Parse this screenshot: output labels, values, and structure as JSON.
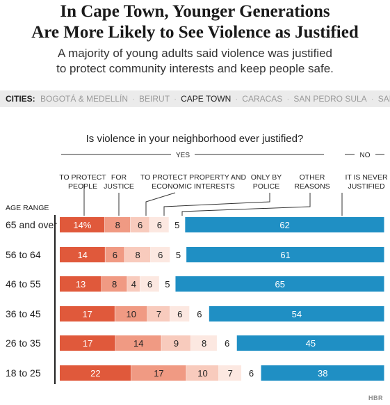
{
  "title_line1": "In Cape Town, Younger Generations",
  "title_line2": "Are More Likely to See Violence as Justified",
  "subtitle_line1": "A majority of young adults said violence was justified",
  "subtitle_line2": "to protect community interests and keep people safe.",
  "cities_label": "CITIES:",
  "cities": [
    {
      "name": "BOGOTÁ & MEDELLÍN",
      "active": false
    },
    {
      "name": "BEIRUT",
      "active": false
    },
    {
      "name": "CAPE TOWN",
      "active": true
    },
    {
      "name": "CARACAS",
      "active": false
    },
    {
      "name": "SAN PEDRO SULA",
      "active": false
    },
    {
      "name": "SAN SALVADOR",
      "active": false
    }
  ],
  "logo_text": "HBR",
  "chart_data": {
    "type": "bar",
    "orientation": "horizontal",
    "stacked": true,
    "title": "Is violence in your neighborhood ever justified?",
    "group_yes_label": "YES",
    "group_no_label": "NO",
    "category_axis_label": "AGE RANGE",
    "categories": [
      "65 and over",
      "56 to 64",
      "46 to 55",
      "36 to 45",
      "26 to 35",
      "18 to 25"
    ],
    "series": [
      {
        "name": "TO PROTECT PEOPLE",
        "label_lines": [
          "TO PROTECT",
          "PEOPLE"
        ],
        "color": "#e0593b",
        "text_color": "#ffffff",
        "values": [
          14,
          14,
          13,
          17,
          17,
          22
        ]
      },
      {
        "name": "FOR JUSTICE",
        "label_lines": [
          "FOR",
          "JUSTICE"
        ],
        "color": "#f09a83",
        "text_color": "#222222",
        "values": [
          8,
          6,
          8,
          10,
          14,
          17
        ]
      },
      {
        "name": "TO PROTECT PROPERTY AND ECONOMIC INTERESTS",
        "label_lines": [
          "TO PROTECT PROPERTY AND",
          "ECONOMIC INTERESTS"
        ],
        "color": "#f8cbbd",
        "text_color": "#222222",
        "values": [
          6,
          8,
          4,
          7,
          9,
          10
        ]
      },
      {
        "name": "ONLY BY POLICE",
        "label_lines": [
          "ONLY BY",
          "POLICE"
        ],
        "color": "#fce8e1",
        "text_color": "#222222",
        "values": [
          6,
          6,
          6,
          6,
          8,
          7
        ]
      },
      {
        "name": "OTHER REASONS",
        "label_lines": [
          "OTHER",
          "REASONS"
        ],
        "color": "#ffffff",
        "text_color": "#222222",
        "values": [
          5,
          5,
          5,
          6,
          6,
          6
        ]
      },
      {
        "name": "IT IS NEVER JUSTIFIED",
        "label_lines": [
          "IT IS NEVER",
          "JUSTIFIED"
        ],
        "color": "#1f8fc4",
        "text_color": "#ffffff",
        "values": [
          62,
          61,
          65,
          54,
          45,
          38
        ]
      }
    ],
    "first_value_suffix": "%",
    "colors": {
      "axis": "#222222",
      "leader": "#333333"
    }
  }
}
